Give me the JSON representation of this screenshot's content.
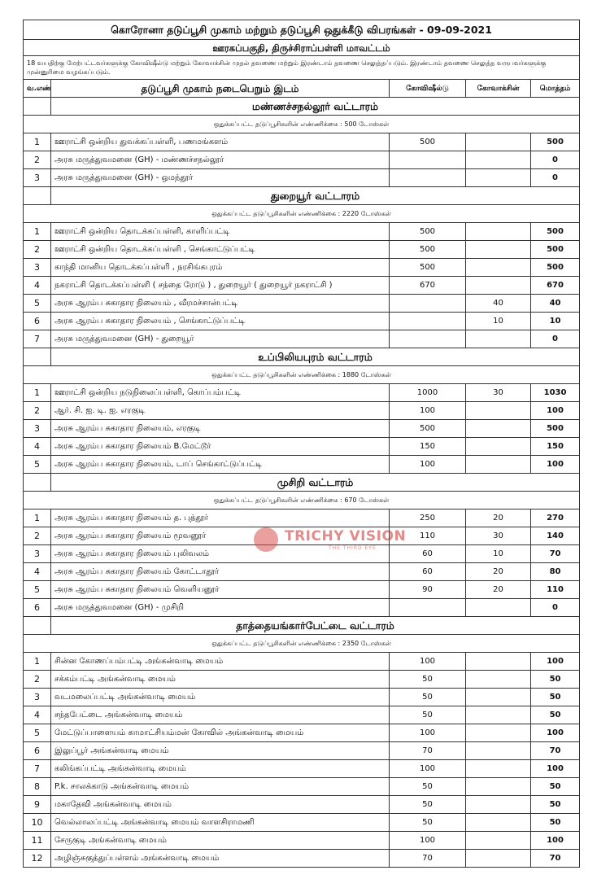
{
  "header": {
    "title": "கொரோனா தடுப்பூசி முகாம் மற்றும் தடுப்பூசி ஒதுக்கீடு விபரங்கள் - 09-09-2021",
    "subtitle": "ஊரகப்பகுதி, திருச்சிராப்பள்ளி மாவட்டம்",
    "note": "18 வயதிற்கு மேற்பட்டவர்களுக்கு கோவிஷீல்டு மற்றும் கோவாக்சின் முதல் தவணை மற்றும் இரண்டாம் தவணை செலுத்தப்படும். இரண்டாம் தவணை செலுத்த வருபவர்களுக்கு முன்னுரிமை வழங்கப்படும்."
  },
  "columns": [
    "வ.எண்",
    "தடுப்பூசி முகாம் நடைபெறும் இடம்",
    "கோவிஷீல்டு",
    "கோவாக்சின்",
    "மொத்தம்"
  ],
  "sections": [
    {
      "name": "மண்ணச்சநல்லூர் வட்டாரம்",
      "allocation": "ஒதுக்கப்பட்ட தடுப்பூசிகளின் எண்ணிக்கை : 500 டோஸ்கள்",
      "rows": [
        [
          1,
          "ஊராட்சி ஒன்றிய துவக்கப்பள்ளி, பணமங்களம்",
          500,
          null,
          500
        ],
        [
          2,
          "அரசு மருத்துவமனை (GH) - மண்ணச்சநல்லூர்",
          null,
          null,
          0
        ],
        [
          3,
          "அரசு மருத்துவமனை (GH) - ஒமந்தூர்",
          null,
          null,
          0
        ]
      ]
    },
    {
      "name": "துறையூர் வட்டாரம்",
      "allocation": "ஒதுக்கப்பட்ட தடுப்பூசிகளின் எண்ணிக்கை : 2220 டோஸ்கள்",
      "rows": [
        [
          1,
          "ஊராட்சி ஒன்றிய தொடக்கப்பள்ளி, காளிப்பட்டி",
          500,
          null,
          500
        ],
        [
          2,
          "ஊராட்சி ஒன்றிய தொடக்கப்பள்ளி , செங்காட்டுப்பட்டி",
          500,
          null,
          500
        ],
        [
          3,
          "காந்தி மானிய தொடக்கப்பள்ளி , நரசிங்கபுரம்",
          500,
          null,
          500
        ],
        [
          4,
          "நகராட்சி தொடக்கப்பள்ளி ( சந்தை ரோடு ) , துறையூர் ( துறையூர் நகராட்சி )",
          670,
          null,
          670
        ],
        [
          5,
          "அரசு ஆரம்ப சுகாதார நிலையம் , வீரமச்சான்பட்டி",
          null,
          40,
          40
        ],
        [
          6,
          "அரசு ஆரம்ப சுகாதார நிலையம் , செங்காட்டுப்பட்டி",
          null,
          10,
          10
        ],
        [
          7,
          "அரசு மருத்துவமனை (GH) - துறையூர்",
          null,
          null,
          0
        ]
      ]
    },
    {
      "name": "உப்பிலியபுரம் வட்டாரம்",
      "allocation": "ஒதுக்கப்பட்ட தடுப்பூசிகளின் எண்ணிக்கை : 1880 டோஸ்கள்",
      "rows": [
        [
          1,
          "ஊராட்சி ஒன்றிய நடுநிலைப்பள்ளி, கொப்பம்பட்டி",
          1000,
          30,
          1030
        ],
        [
          2,
          "ஆர். சி. ஐ. டி. ஐ. எரகுடி",
          100,
          null,
          100
        ],
        [
          3,
          "அரசு ஆரம்ப சுகாதார நிலையம், எரகுடி",
          500,
          null,
          500
        ],
        [
          4,
          "அரசு ஆரம்ப சுகாதார நிலையம் B.மேட்டூர்",
          150,
          null,
          150
        ],
        [
          5,
          "அரசு ஆரம்ப சுகாதார நிலையம், டாப் செங்காட்டுப்பட்டி",
          100,
          null,
          100
        ]
      ]
    },
    {
      "name": "முசிறி வட்டாரம்",
      "allocation": "ஒதுக்கப்பட்ட தடுப்பூசிகளின் எண்ணிக்கை : 670 டோஸ்கள்",
      "rows": [
        [
          1,
          "அரசு ஆரம்ப சுகாதார நிலையம் த. புத்தூர்",
          250,
          20,
          270
        ],
        [
          2,
          "அரசு ஆரம்ப சுகாதார நிலையம் மூவனூர்",
          110,
          30,
          140
        ],
        [
          3,
          "அரசு ஆரம்ப சுகாதார நிலையம் புலிவலம்",
          60,
          10,
          70
        ],
        [
          4,
          "அரசு ஆரம்ப சுகாதார நிலையம் கோட்டாதூர்",
          60,
          20,
          80
        ],
        [
          5,
          "அரசு ஆரம்ப சுகாதார நிலையம் வெளியனூர்",
          90,
          20,
          110
        ],
        [
          6,
          "அரசு மருத்துவமனை (GH) - முசிறி",
          null,
          null,
          0
        ]
      ]
    },
    {
      "name": "தாத்தையங்கார்பேட்டை வட்டாரம்",
      "allocation": "ஒதுக்கப்பட்ட தடுப்பூசிகளின் எண்ணிக்கை : 2350 டோஸ்கள்",
      "rows": [
        [
          1,
          "சின்ன கோணப்பம்பட்டி அங்கன்வாடி மையம்",
          100,
          null,
          100
        ],
        [
          2,
          "சக்கம்பட்டி அங்கன்வாடி மையம்",
          50,
          null,
          50
        ],
        [
          3,
          "வடமலைப்பட்டி அங்கன்வாடி மையம்",
          50,
          null,
          50
        ],
        [
          4,
          "சந்தபேட்டை அங்கன்வாடி மையம்",
          50,
          null,
          50
        ],
        [
          5,
          "மேட்டுப்பாளையம் காமாட்சியம்மன் கோவில் அங்கன்வாடி மையம்",
          100,
          null,
          100
        ],
        [
          6,
          "இலுப்பூர் அங்கன்வாடி மையம்",
          70,
          null,
          70
        ],
        [
          7,
          "கலிங்கப்பட்டி அங்கன்வாடி மையம்",
          100,
          null,
          100
        ],
        [
          8,
          "P.k. சாலக்காடு அங்கன்வாடி மையம்",
          50,
          null,
          50
        ],
        [
          9,
          "மகாதேவி அங்கன்வாடி மையம்",
          50,
          null,
          50
        ],
        [
          10,
          "வெல்லாலப்பட்டி அங்கன்வாடி மையம் வாளசிராமணி",
          50,
          null,
          50
        ],
        [
          11,
          "சேருகுடி அங்கன்வாடி மையம்",
          100,
          null,
          100
        ],
        [
          12,
          "அழிஞ்சுகுத்துப்பள்ளம் அங்கன்வாடி மையம்",
          70,
          null,
          70
        ]
      ]
    }
  ],
  "watermark": {
    "name": "TRICHY VISION",
    "tagline": "THE THIRD EYE"
  }
}
